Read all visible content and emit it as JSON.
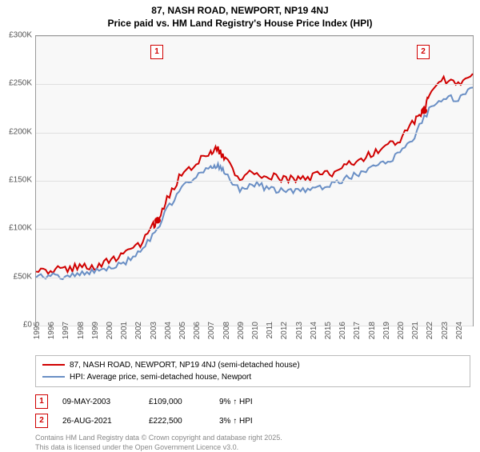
{
  "title_line1": "87, NASH ROAD, NEWPORT, NP19 4NJ",
  "title_line2": "Price paid vs. HM Land Registry's House Price Index (HPI)",
  "chart": {
    "type": "line",
    "background_color": "#f8f8f8",
    "grid_color": "#e0e0e0",
    "border_color": "#999999",
    "ylim": [
      0,
      300000
    ],
    "ytick_step": 50000,
    "yticks": [
      "£0",
      "£50K",
      "£100K",
      "£150K",
      "£200K",
      "£250K",
      "£300K"
    ],
    "xlim": [
      1995,
      2025
    ],
    "xticks": [
      1995,
      1996,
      1997,
      1998,
      1999,
      2000,
      2001,
      2002,
      2003,
      2004,
      2005,
      2006,
      2007,
      2008,
      2009,
      2010,
      2011,
      2012,
      2013,
      2014,
      2015,
      2016,
      2017,
      2018,
      2019,
      2020,
      2021,
      2022,
      2023,
      2024
    ],
    "series": [
      {
        "name": "87, NASH ROAD, NEWPORT, NP19 4NJ (semi-detached house)",
        "color": "#d00000",
        "line_width": 2,
        "data": [
          [
            1995,
            56000
          ],
          [
            1996,
            55000
          ],
          [
            1997,
            56000
          ],
          [
            1998,
            58000
          ],
          [
            1999,
            60000
          ],
          [
            2000,
            64000
          ],
          [
            2001,
            70000
          ],
          [
            2002,
            80000
          ],
          [
            2003,
            100000
          ],
          [
            2003.35,
            109000
          ],
          [
            2004,
            130000
          ],
          [
            2005,
            155000
          ],
          [
            2006,
            165000
          ],
          [
            2007,
            178000
          ],
          [
            2007.5,
            180000
          ],
          [
            2008,
            170000
          ],
          [
            2009,
            150000
          ],
          [
            2010,
            158000
          ],
          [
            2011,
            152000
          ],
          [
            2012,
            150000
          ],
          [
            2013,
            150000
          ],
          [
            2014,
            152000
          ],
          [
            2015,
            155000
          ],
          [
            2016,
            160000
          ],
          [
            2017,
            168000
          ],
          [
            2018,
            175000
          ],
          [
            2019,
            182000
          ],
          [
            2020,
            190000
          ],
          [
            2021,
            210000
          ],
          [
            2021.65,
            222500
          ],
          [
            2022,
            240000
          ],
          [
            2023,
            252000
          ],
          [
            2024,
            250000
          ],
          [
            2025,
            260000
          ]
        ]
      },
      {
        "name": "HPI: Average price, semi-detached house, Newport",
        "color": "#6a8fc5",
        "line_width": 2,
        "data": [
          [
            1995,
            50000
          ],
          [
            1996,
            49000
          ],
          [
            1997,
            50000
          ],
          [
            1998,
            52000
          ],
          [
            1999,
            54000
          ],
          [
            2000,
            58000
          ],
          [
            2001,
            63000
          ],
          [
            2002,
            72000
          ],
          [
            2003,
            90000
          ],
          [
            2004,
            118000
          ],
          [
            2005,
            140000
          ],
          [
            2006,
            152000
          ],
          [
            2007,
            163000
          ],
          [
            2007.5,
            165000
          ],
          [
            2008,
            155000
          ],
          [
            2009,
            138000
          ],
          [
            2010,
            145000
          ],
          [
            2011,
            140000
          ],
          [
            2012,
            138000
          ],
          [
            2013,
            138000
          ],
          [
            2014,
            140000
          ],
          [
            2015,
            143000
          ],
          [
            2016,
            148000
          ],
          [
            2017,
            155000
          ],
          [
            2018,
            162000
          ],
          [
            2019,
            168000
          ],
          [
            2020,
            176000
          ],
          [
            2021,
            195000
          ],
          [
            2022,
            222000
          ],
          [
            2023,
            235000
          ],
          [
            2024,
            233000
          ],
          [
            2025,
            243000
          ]
        ]
      }
    ],
    "markers": [
      {
        "id": "1",
        "x": 2003.35,
        "y": 109000
      },
      {
        "id": "2",
        "x": 2021.65,
        "y": 222500
      }
    ]
  },
  "legend": {
    "items": [
      {
        "color": "#d00000",
        "label": "87, NASH ROAD, NEWPORT, NP19 4NJ (semi-detached house)"
      },
      {
        "color": "#6a8fc5",
        "label": "HPI: Average price, semi-detached house, Newport"
      }
    ]
  },
  "transactions": [
    {
      "id": "1",
      "date": "09-MAY-2003",
      "price": "£109,000",
      "pct": "9% ↑ HPI"
    },
    {
      "id": "2",
      "date": "26-AUG-2021",
      "price": "£222,500",
      "pct": "3% ↑ HPI"
    }
  ],
  "footer_line1": "Contains HM Land Registry data © Crown copyright and database right 2025.",
  "footer_line2": "This data is licensed under the Open Government Licence v3.0."
}
